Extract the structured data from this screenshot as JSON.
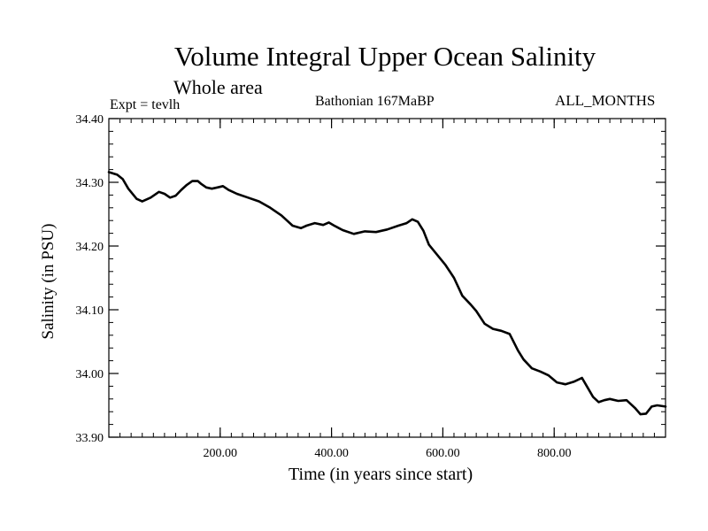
{
  "chart_data": {
    "type": "line",
    "title": "Volume Integral Upper Ocean Salinity",
    "subtitle": "Whole area",
    "annotations": {
      "left": "Expt = tevlh",
      "center": "Bathonian 167MaBP",
      "right": "ALL_MONTHS"
    },
    "xlabel": "Time (in years since start)",
    "ylabel": "Salinity (in PSU)",
    "xlim": [
      0,
      1000
    ],
    "ylim": [
      33.9,
      34.4
    ],
    "x_ticks": [
      200,
      400,
      600,
      800
    ],
    "x_tick_labels": [
      "200.00",
      "400.00",
      "600.00",
      "800.00"
    ],
    "y_ticks": [
      33.9,
      34.0,
      34.1,
      34.2,
      34.3,
      34.4
    ],
    "y_tick_labels": [
      "33.90",
      "34.00",
      "34.10",
      "34.20",
      "34.30",
      "34.40"
    ],
    "grid": false,
    "series": [
      {
        "name": "Salinity",
        "x": [
          0,
          15,
          25,
          35,
          50,
          60,
          75,
          90,
          100,
          110,
          120,
          130,
          140,
          150,
          160,
          165,
          175,
          185,
          195,
          205,
          215,
          230,
          250,
          270,
          290,
          310,
          330,
          345,
          355,
          370,
          385,
          395,
          405,
          420,
          440,
          460,
          480,
          500,
          520,
          535,
          545,
          555,
          565,
          575,
          590,
          605,
          620,
          635,
          650,
          660,
          675,
          690,
          705,
          720,
          735,
          745,
          760,
          775,
          790,
          805,
          820,
          835,
          850,
          860,
          870,
          880,
          890,
          900,
          915,
          930,
          945,
          955,
          965,
          975,
          985,
          1000
        ],
        "values": [
          34.316,
          34.312,
          34.305,
          34.29,
          34.274,
          34.27,
          34.276,
          34.285,
          34.282,
          34.276,
          34.279,
          34.288,
          34.296,
          34.302,
          34.302,
          34.298,
          34.292,
          34.29,
          34.292,
          34.294,
          34.288,
          34.282,
          34.276,
          34.27,
          34.26,
          34.248,
          34.232,
          34.228,
          34.232,
          34.236,
          34.233,
          34.237,
          34.232,
          34.225,
          34.219,
          34.223,
          34.222,
          34.226,
          34.232,
          34.236,
          34.242,
          34.238,
          34.224,
          34.202,
          34.186,
          34.17,
          34.15,
          34.122,
          34.108,
          34.098,
          34.078,
          34.07,
          34.067,
          34.062,
          34.036,
          34.022,
          34.008,
          34.003,
          33.997,
          33.986,
          33.983,
          33.987,
          33.993,
          33.978,
          33.963,
          33.955,
          33.958,
          33.96,
          33.957,
          33.958,
          33.946,
          33.936,
          33.937,
          33.948,
          33.95,
          33.948
        ]
      }
    ]
  }
}
